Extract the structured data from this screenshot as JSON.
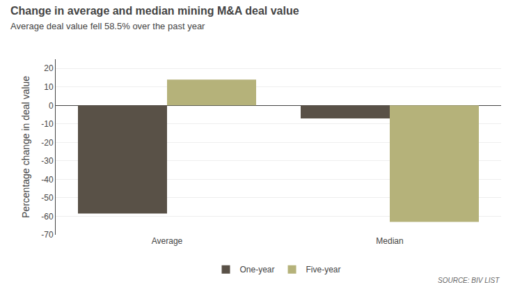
{
  "chart_data": {
    "type": "bar",
    "title": "Change in average and median mining M&A deal value",
    "subtitle": "Average deal value fell 58.5% over the past year",
    "source": "SOURCE: BIV LIST",
    "categories": [
      "Average",
      "Median"
    ],
    "series": [
      {
        "name": "One-year",
        "color": "#595147",
        "values": [
          -58.5,
          -7.0
        ]
      },
      {
        "name": "Five-year",
        "color": "#b5b27a",
        "values": [
          14.0,
          -63.0
        ]
      }
    ],
    "ylabel": "Percentage change in deal value",
    "ylim": [
      -70,
      25
    ],
    "yticks": [
      -70,
      -60,
      -50,
      -40,
      -30,
      -20,
      -10,
      0,
      10,
      20
    ],
    "grid": true,
    "legend": "bottom"
  }
}
